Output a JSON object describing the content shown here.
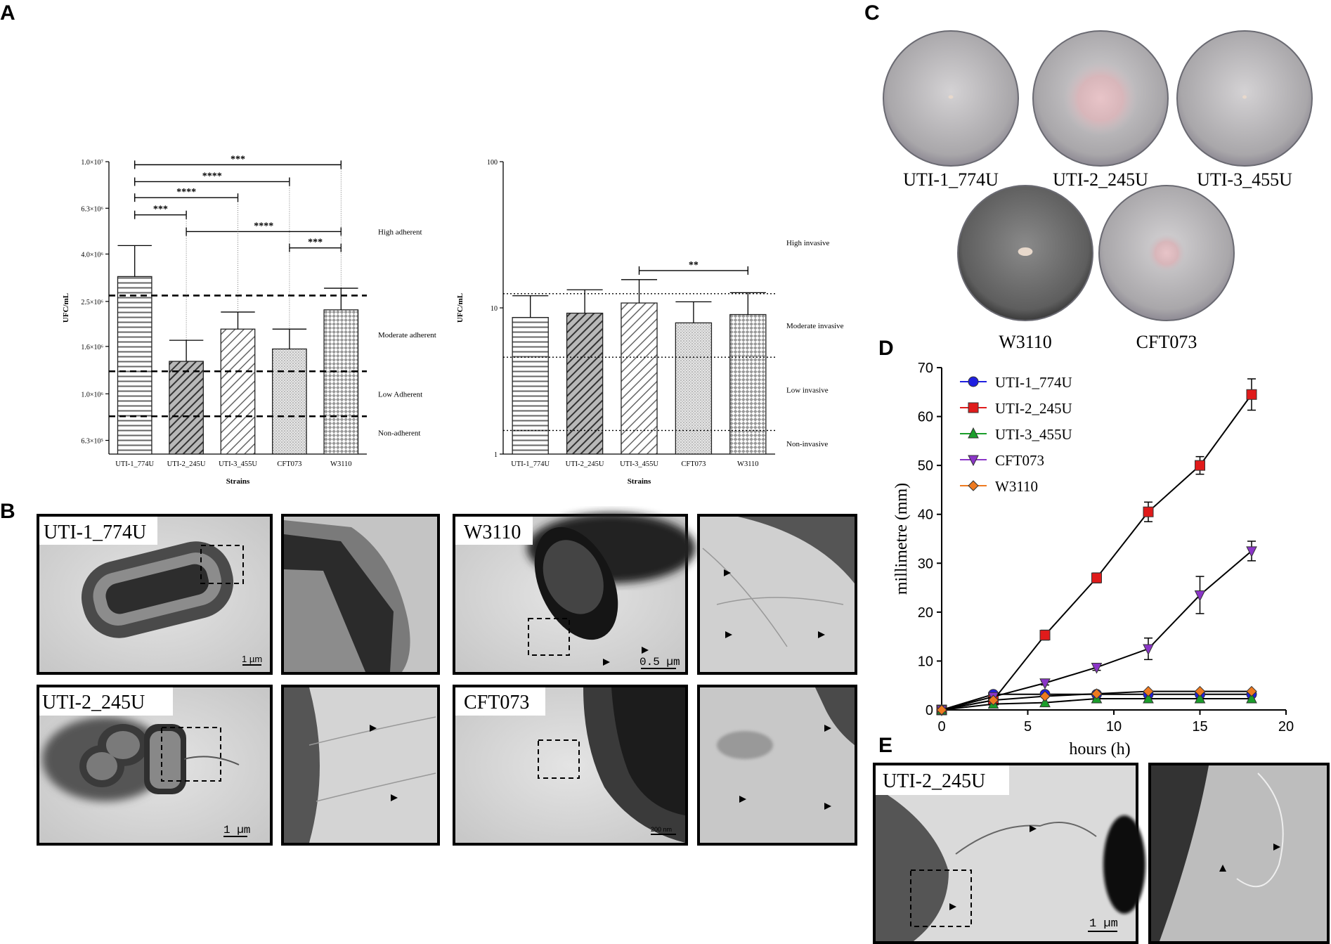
{
  "panels": {
    "a": "A",
    "b": "B",
    "c": "C",
    "d": "D",
    "e": "E"
  },
  "chart_data": [
    {
      "id": "adherence",
      "type": "bar",
      "xlabel": "Strains",
      "ylabel": "UFC/mL",
      "yscale": "log",
      "ylim": [
        550000,
        10000000
      ],
      "yticks": [
        "1.0×10⁷",
        "6.3×10⁶",
        "4.0×10⁶",
        "2.5×10⁶",
        "1.6×10⁶",
        "1.0×10⁶",
        "6.3×10⁵"
      ],
      "ytick_values": [
        10000000,
        6300000,
        4000000,
        2500000,
        1600000,
        1000000,
        630000
      ],
      "categories": [
        "UTI-1_774U",
        "UTI-2_245U",
        "UTI-3_455U",
        "CFT073",
        "W3110"
      ],
      "values": [
        3200000,
        1380000,
        1900000,
        1560000,
        2300000
      ],
      "error_upper": [
        4350000,
        1700000,
        2250000,
        1900000,
        2850000
      ],
      "patterns": [
        "hstripe",
        "diag-dark",
        "diag-light",
        "dots",
        "checker"
      ],
      "threshold_lines": [
        2650000,
        1250000,
        800000
      ],
      "zones": [
        {
          "label": "High adherent",
          "value": 5000000
        },
        {
          "label": "Moderate adherent",
          "value": 1800000
        },
        {
          "label": "Low Adherent",
          "value": 1000000
        },
        {
          "label": "Non-adherent",
          "value": 680000
        }
      ],
      "significance": [
        {
          "from": 0,
          "to": 4,
          "label": "***",
          "level": 9700000
        },
        {
          "from": 0,
          "to": 3,
          "label": "****",
          "level": 8200000
        },
        {
          "from": 0,
          "to": 2,
          "label": "****",
          "level": 7000000
        },
        {
          "from": 0,
          "to": 1,
          "label": "***",
          "level": 5900000
        },
        {
          "from": 1,
          "to": 4,
          "label": "****",
          "level": 5000000
        },
        {
          "from": 3,
          "to": 4,
          "label": "***",
          "level": 4250000
        }
      ]
    },
    {
      "id": "invasion",
      "type": "bar",
      "xlabel": "Strains",
      "ylabel": "UFC/mL",
      "yscale": "log",
      "ylim": [
        1,
        100
      ],
      "yticks": [
        "100",
        "10",
        "1"
      ],
      "ytick_values": [
        100,
        10,
        1
      ],
      "categories": [
        "UTI-1_774U",
        "UTI-2_245U",
        "UTI-3_455U",
        "CFT073",
        "W3110"
      ],
      "values": [
        8.6,
        9.2,
        10.8,
        7.9,
        9.0
      ],
      "error_upper": [
        12.1,
        13.3,
        15.6,
        11.0,
        12.7
      ],
      "patterns": [
        "hstripe",
        "diag-dark",
        "diag-light",
        "dots",
        "checker"
      ],
      "threshold_lines": [
        12.5,
        4.6,
        1.45
      ],
      "zones": [
        {
          "label": "High invasive",
          "value": 28
        },
        {
          "label": "Moderate invasive",
          "value": 7.6
        },
        {
          "label": "Low invasive",
          "value": 2.75
        },
        {
          "label": "Non-invasive",
          "value": 1.18
        }
      ],
      "significance": [
        {
          "from": 2,
          "to": 4,
          "label": "**",
          "level": 18
        }
      ]
    },
    {
      "id": "swimming",
      "type": "line",
      "xlabel": "hours (h)",
      "ylabel": "millimetre (mm)",
      "xlim": [
        0,
        20
      ],
      "ylim": [
        0,
        70
      ],
      "xticks": [
        0,
        5,
        10,
        15,
        20
      ],
      "yticks": [
        0,
        10,
        20,
        30,
        40,
        50,
        60,
        70
      ],
      "x": [
        0,
        3,
        6,
        9,
        12,
        15,
        18
      ],
      "legend_position": "top-left",
      "series": [
        {
          "name": "UTI-1_774U",
          "color": "#1f1fe0",
          "marker": "circle",
          "values": [
            0,
            3.2,
            3.2,
            3.2,
            3.2,
            3.2,
            3.2
          ],
          "err": [
            0,
            0,
            0,
            0,
            0,
            0,
            0
          ]
        },
        {
          "name": "UTI-2_245U",
          "color": "#e01b1b",
          "marker": "square",
          "values": [
            0,
            2,
            15.3,
            27,
            40.5,
            50,
            64.5
          ],
          "err": [
            0,
            0.6,
            1.0,
            1.0,
            2.0,
            1.8,
            3.2
          ]
        },
        {
          "name": "UTI-3_455U",
          "color": "#1a9e2a",
          "marker": "triangle-up",
          "values": [
            0,
            1.2,
            1.5,
            2.3,
            2.3,
            2.3,
            2.3
          ],
          "err": [
            0,
            0,
            0,
            0,
            0,
            0,
            0
          ]
        },
        {
          "name": "CFT073",
          "color": "#8b35c8",
          "marker": "triangle-down",
          "values": [
            0,
            2.7,
            5.5,
            8.7,
            12.5,
            23.5,
            32.5
          ],
          "err": [
            0,
            0,
            0.4,
            0.6,
            2.2,
            3.8,
            2.0
          ]
        },
        {
          "name": "W3110",
          "color": "#ee7a20",
          "marker": "diamond",
          "values": [
            0,
            2,
            2.8,
            3.3,
            3.8,
            3.8,
            3.8
          ],
          "err": [
            0,
            0,
            0,
            0,
            0,
            0,
            0
          ]
        }
      ]
    }
  ],
  "plates": [
    {
      "label": "UTI-1_774U",
      "halo": 0.0,
      "colony": 0.06,
      "tint": "#b9b7ba"
    },
    {
      "label": "UTI-2_245U",
      "halo": 0.55,
      "colony": 0.0,
      "tint": "#c9b8bc"
    },
    {
      "label": "UTI-3_455U",
      "halo": 0.0,
      "colony": 0.05,
      "tint": "#b6b4b7"
    },
    {
      "label": "W3110",
      "halo": 0.0,
      "colony": 0.18,
      "tint": "#707070"
    },
    {
      "label": "CFT073",
      "halo": 0.28,
      "colony": 0.0,
      "tint": "#a4a2a4"
    }
  ],
  "micrographs": {
    "b": [
      {
        "label": "UTI-1_774U",
        "scale": "1 µm"
      },
      {
        "label": "W3110",
        "scale": "0.5 µm"
      },
      {
        "label": "UTI-2_245U",
        "scale": "1 µm"
      },
      {
        "label": "CFT073",
        "scale": "200 nm"
      }
    ],
    "e": {
      "label": "UTI-2_245U",
      "scale": "1 µm"
    }
  }
}
